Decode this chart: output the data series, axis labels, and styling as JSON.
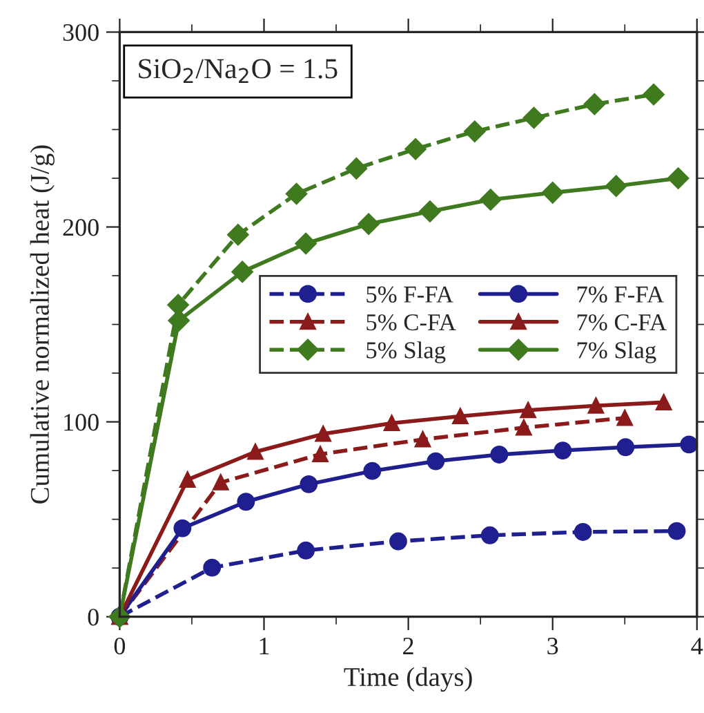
{
  "chart_data": {
    "type": "line",
    "xlabel": "Time (days)",
    "ylabel": "Cumulative normalized heat (J/g)",
    "annotations": [
      "SiO$_{2}$/Na$_{2}$O = 1.5"
    ],
    "xlim": [
      0,
      4
    ],
    "ylim": [
      0,
      300
    ],
    "xticks": [
      0,
      1,
      2,
      3,
      4
    ],
    "yticks": [
      0,
      100,
      200,
      300
    ],
    "grid": false,
    "legend": "center right",
    "series": [
      {
        "name": "5% F-FA",
        "color": "#1f1f8f",
        "marker": "circle",
        "line_style": "dashed",
        "x": [
          0,
          0.64,
          1.29,
          1.93,
          2.565,
          3.21,
          3.86
        ],
        "values": [
          0,
          25.2,
          34,
          38.7,
          41.8,
          43.5,
          44
        ]
      },
      {
        "name": "5% C-FA",
        "color": "#8b1a1a",
        "marker": "triangle",
        "line_style": "dashed",
        "x": [
          0,
          0.7,
          1.39,
          2.1,
          2.8,
          3.5
        ],
        "values": [
          0,
          68.9,
          83.4,
          91,
          97,
          102
        ]
      },
      {
        "name": "5% Slag",
        "color": "#3f7a1f",
        "marker": "diamond",
        "line_style": "dashed",
        "x": [
          0,
          0.405,
          0.82,
          1.225,
          1.64,
          2.05,
          2.46,
          2.87,
          3.29,
          3.7
        ],
        "values": [
          0,
          160,
          196,
          217,
          230,
          240,
          249,
          256,
          263,
          268
        ]
      },
      {
        "name": "7% F-FA",
        "color": "#1f1f8f",
        "marker": "circle",
        "line_style": "solid",
        "x": [
          0,
          0.435,
          0.875,
          1.31,
          1.75,
          2.19,
          2.63,
          3.07,
          3.505,
          3.945
        ],
        "values": [
          0,
          45.4,
          59,
          68,
          74.8,
          79.8,
          83.2,
          85.3,
          87,
          88.4
        ]
      },
      {
        "name": "7% C-FA",
        "color": "#8b1a1a",
        "marker": "triangle",
        "line_style": "solid",
        "x": [
          0,
          0.47,
          0.94,
          1.41,
          1.885,
          2.36,
          2.83,
          3.3,
          3.77
        ],
        "values": [
          0,
          70.3,
          84.6,
          93.8,
          99.3,
          102.9,
          106,
          108.3,
          110
        ]
      },
      {
        "name": "7% Slag",
        "color": "#3f7a1f",
        "marker": "diamond",
        "line_style": "solid",
        "x": [
          0,
          0.41,
          0.85,
          1.29,
          1.725,
          2.15,
          2.57,
          3.0,
          3.44,
          3.87
        ],
        "values": [
          0,
          152,
          177,
          191.5,
          201.5,
          208,
          214,
          217.6,
          221,
          225
        ]
      }
    ]
  }
}
